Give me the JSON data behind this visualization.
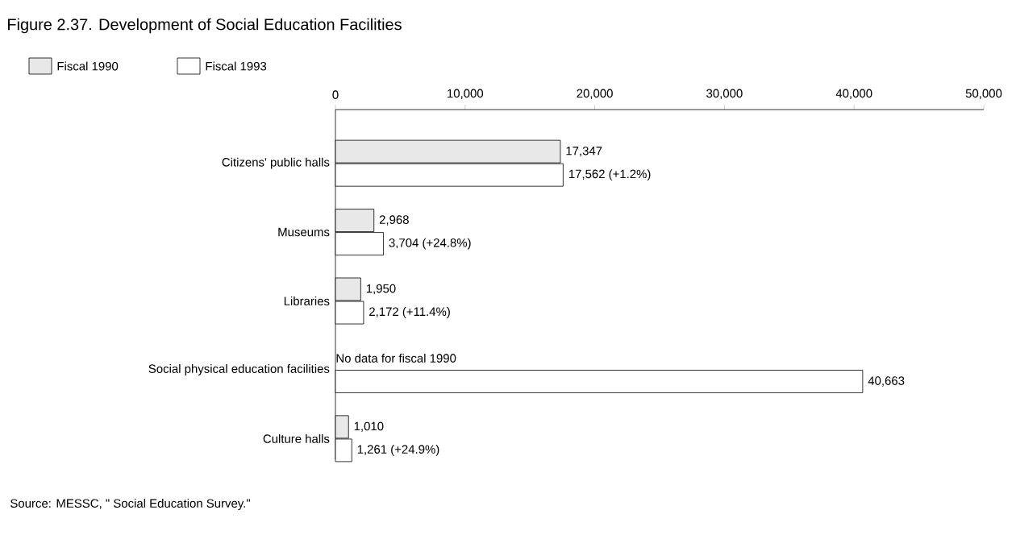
{
  "chart_data": {
    "type": "bar",
    "orientation": "horizontal",
    "title": "Figure 2.37. Development of Social Education Facilities",
    "categories": [
      "Citizens' public halls",
      "Museums",
      "Libraries",
      "Social physical education facilities",
      "Culture halls"
    ],
    "series": [
      {
        "name": "Fiscal 1990",
        "color": "#e8e8e8",
        "values": [
          17347,
          2968,
          1950,
          null,
          1010
        ],
        "value_labels": [
          "17,347",
          "2,968",
          "1,950",
          null,
          "1,010"
        ]
      },
      {
        "name": "Fiscal 1993",
        "color": "#ffffff",
        "values": [
          17562,
          3704,
          2172,
          40663,
          1261
        ],
        "value_labels": [
          "17,562 (+1.2%)",
          "3,704 (+24.8%)",
          "2,172 (+11.4%)",
          "40,663",
          "1,261 (+24.9%)"
        ]
      }
    ],
    "xlim": [
      0,
      50000
    ],
    "xticks": [
      0,
      {
        "value": 10000,
        "label": "10,000"
      },
      {
        "value": 20000,
        "label": "20,000"
      },
      {
        "value": 30000,
        "label": "30,000"
      },
      {
        "value": 40000,
        "label": "40,000"
      },
      {
        "value": 50000,
        "label": "50,000"
      }
    ],
    "legend": "top left",
    "grid": false,
    "annotations": [
      {
        "text": "No data for fiscal 1990",
        "x": 0,
        "y": "Social physical education facilities"
      },
      "Source: MESSC, \" Social Education Survey.\""
    ]
  }
}
